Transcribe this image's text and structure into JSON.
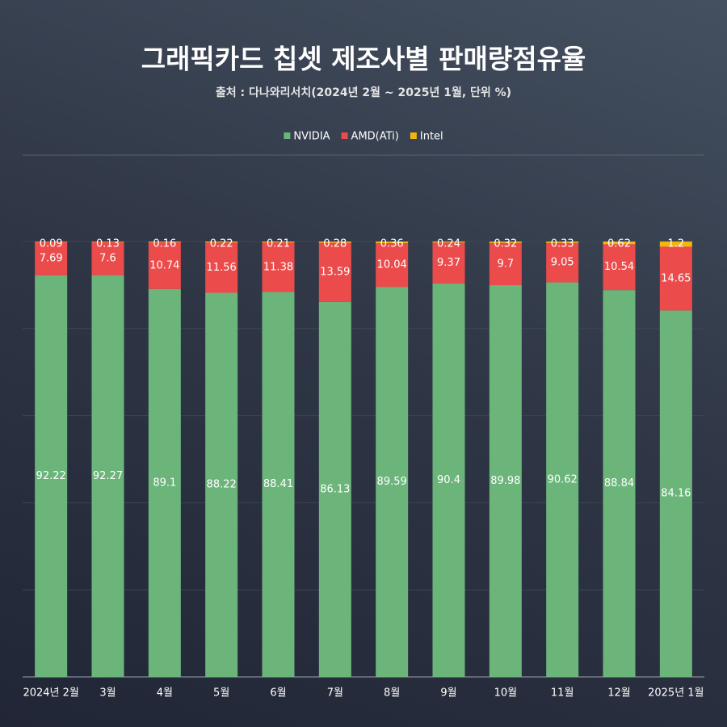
{
  "chart_data": {
    "type": "stacked_bar",
    "title": "그래픽카드 칩셋 제조사별 판매량점유율",
    "subtitle": "출처 : 다나와리서치(2024년 2월 ~ 2025년 1월, 단위 %)",
    "categories": [
      "2024년 2월",
      "3월",
      "4월",
      "5월",
      "6월",
      "7월",
      "8월",
      "9월",
      "10월",
      "11월",
      "12월",
      "2025년 1월"
    ],
    "series": [
      {
        "name": "NVIDIA",
        "color": "#6bb57b",
        "values": [
          92.22,
          92.27,
          89.1,
          88.22,
          88.41,
          86.13,
          89.59,
          90.4,
          89.98,
          90.62,
          88.84,
          84.16
        ]
      },
      {
        "name": "AMD(ATi)",
        "color": "#ec4b4b",
        "values": [
          7.69,
          7.6,
          10.74,
          11.56,
          11.38,
          13.59,
          10.04,
          9.37,
          9.7,
          9.05,
          10.54,
          14.65
        ]
      },
      {
        "name": "Intel",
        "color": "#f3b60a",
        "values": [
          0.09,
          0.13,
          0.16,
          0.22,
          0.21,
          0.28,
          0.36,
          0.24,
          0.32,
          0.33,
          0.62,
          1.2
        ]
      }
    ],
    "ylim": [
      0,
      100
    ],
    "yticks": [
      0,
      20,
      40,
      60,
      80,
      100
    ],
    "grid": true
  }
}
